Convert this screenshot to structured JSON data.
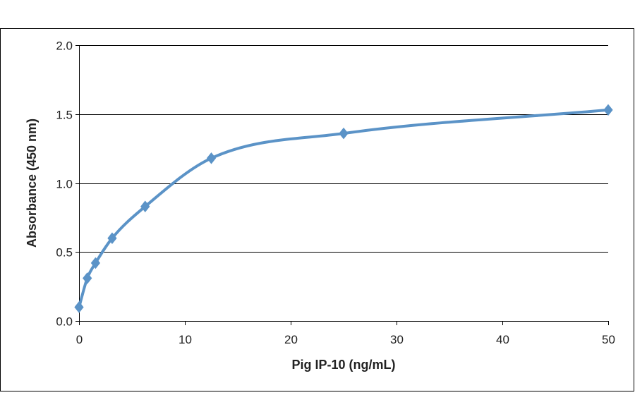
{
  "chart_data": {
    "type": "line",
    "title": "",
    "xlabel": "Pig IP-10 (ng/mL)",
    "ylabel": "Absorbance  (450 nm)",
    "xlim": [
      0,
      50
    ],
    "ylim": [
      0,
      2.0
    ],
    "x_ticks": [
      "0",
      "10",
      "20",
      "30",
      "40",
      "50"
    ],
    "y_ticks": [
      "0.0",
      "0.5",
      "1.0",
      "1.5",
      "2.0"
    ],
    "grid": "horizontal major gridlines",
    "legend": "none",
    "smooth": true,
    "series": [
      {
        "color": "#5b93c7",
        "marker": "diamond",
        "x": [
          0,
          0.78,
          1.56,
          3.13,
          6.25,
          12.5,
          25,
          50
        ],
        "y": [
          0.1,
          0.31,
          0.42,
          0.6,
          0.83,
          1.18,
          1.36,
          1.53
        ]
      }
    ]
  }
}
